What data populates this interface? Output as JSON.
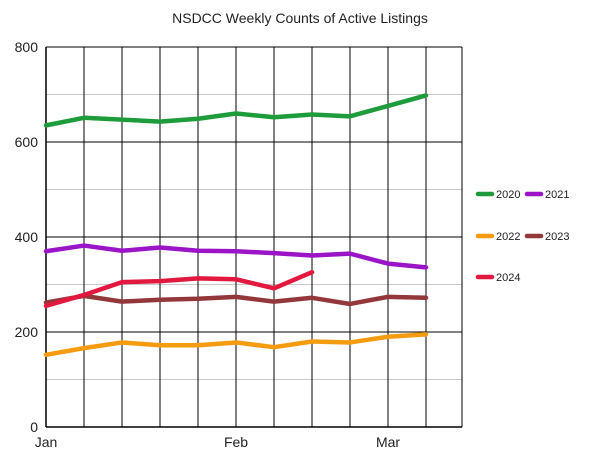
{
  "chart_data": {
    "type": "line",
    "title": "NSDCC Weekly Counts of Active Listings",
    "xlabel": "",
    "ylabel": "",
    "ylim": [
      0,
      800
    ],
    "yticks": [
      0,
      200,
      400,
      600,
      800
    ],
    "x_weeks": 11,
    "x_tick_labels": [
      {
        "label": "Jan",
        "week": 0
      },
      {
        "label": "Feb",
        "week": 5
      },
      {
        "label": "Mar",
        "week": 9
      }
    ],
    "grid": true,
    "legend_position": "right",
    "series": [
      {
        "name": "2020",
        "color": "#1e9b3a",
        "values": [
          635,
          651,
          647,
          643,
          649,
          660,
          652,
          658,
          654,
          676,
          698
        ]
      },
      {
        "name": "2021",
        "color": "#9b14c8",
        "values": [
          370,
          382,
          371,
          378,
          371,
          370,
          366,
          361,
          365,
          344,
          336
        ]
      },
      {
        "name": "2022",
        "color": "#f59b0f",
        "values": [
          152,
          166,
          178,
          172,
          172,
          178,
          168,
          180,
          178,
          190,
          195
        ]
      },
      {
        "name": "2023",
        "color": "#93373a",
        "values": [
          262,
          276,
          264,
          268,
          270,
          274,
          264,
          272,
          259,
          274,
          272
        ]
      },
      {
        "name": "2024",
        "color": "#e3183f",
        "values": [
          255,
          278,
          305,
          307,
          313,
          311,
          292,
          326
        ]
      }
    ]
  }
}
